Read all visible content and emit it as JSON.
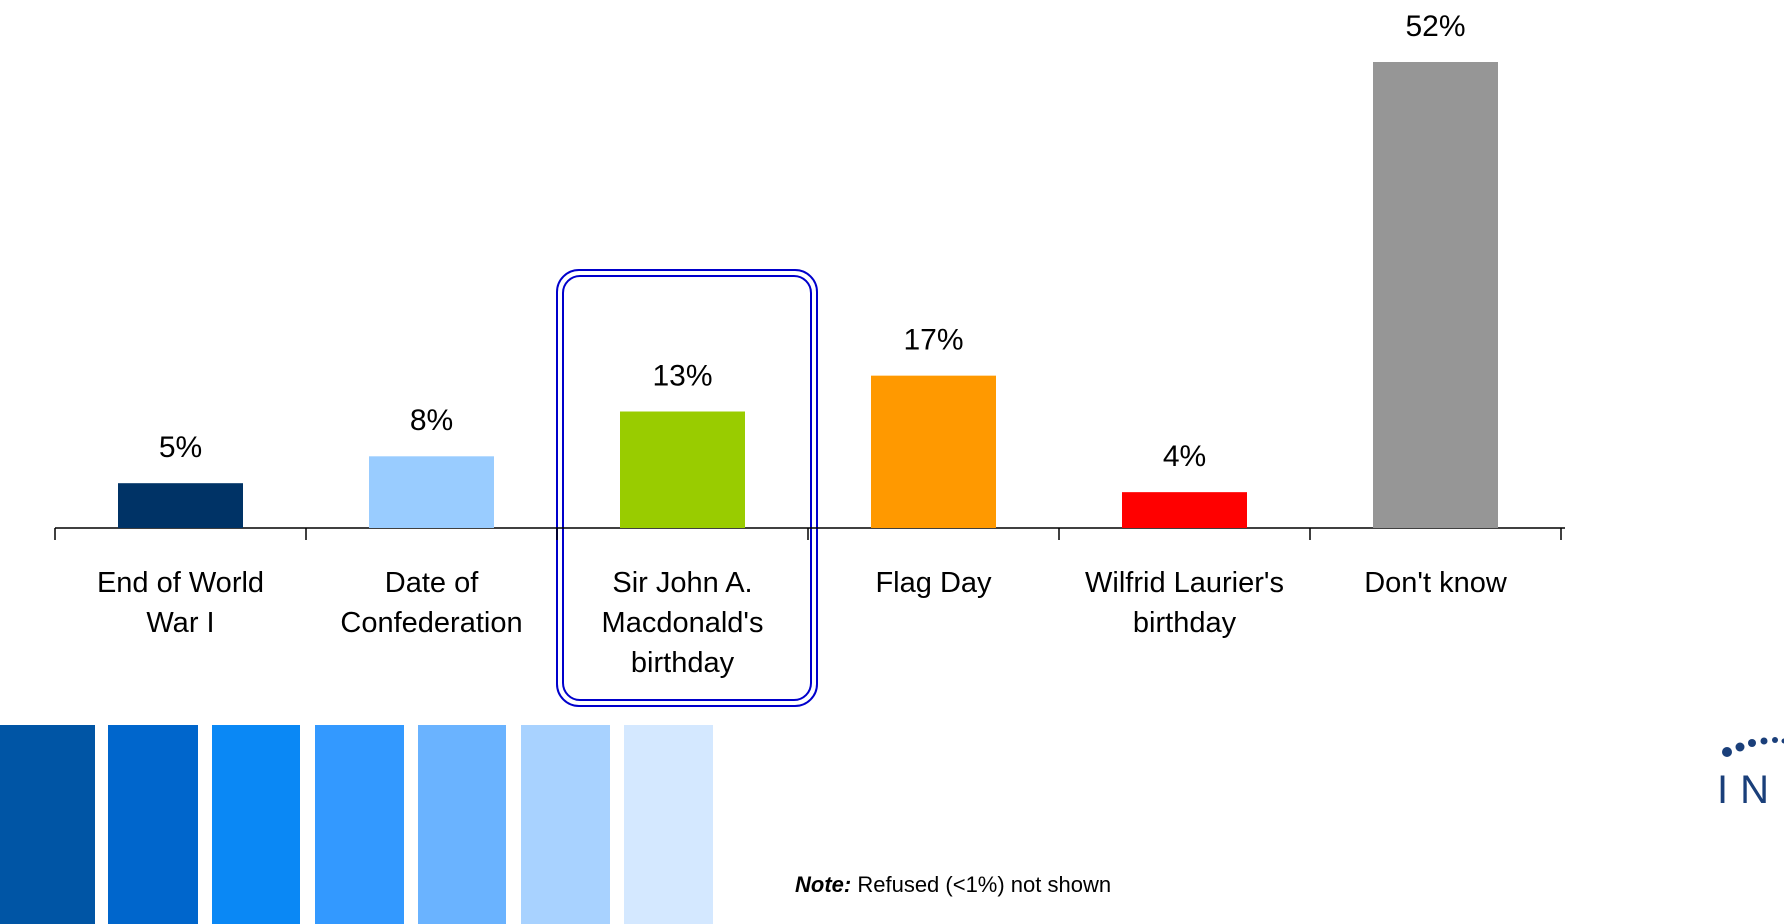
{
  "chart_data": {
    "type": "bar",
    "categories": [
      "End of World\nWar I",
      "Date of\nConfederation",
      "Sir John A.\nMacdonald's\nbirthday",
      "Flag Day",
      "Wilfrid Laurier's\nbirthday",
      "Don't know"
    ],
    "values": [
      5,
      8,
      13,
      17,
      4,
      52
    ],
    "value_labels": [
      "5%",
      "8%",
      "13%",
      "17%",
      "4%",
      "52%"
    ],
    "colors": [
      "#003366",
      "#99ccff",
      "#99cc00",
      "#ff9900",
      "#ff0000",
      "#969696"
    ],
    "note": {
      "label": "Note:",
      "text": "Refused (<1%) not shown"
    },
    "logo": "INNOVAT"
  }
}
